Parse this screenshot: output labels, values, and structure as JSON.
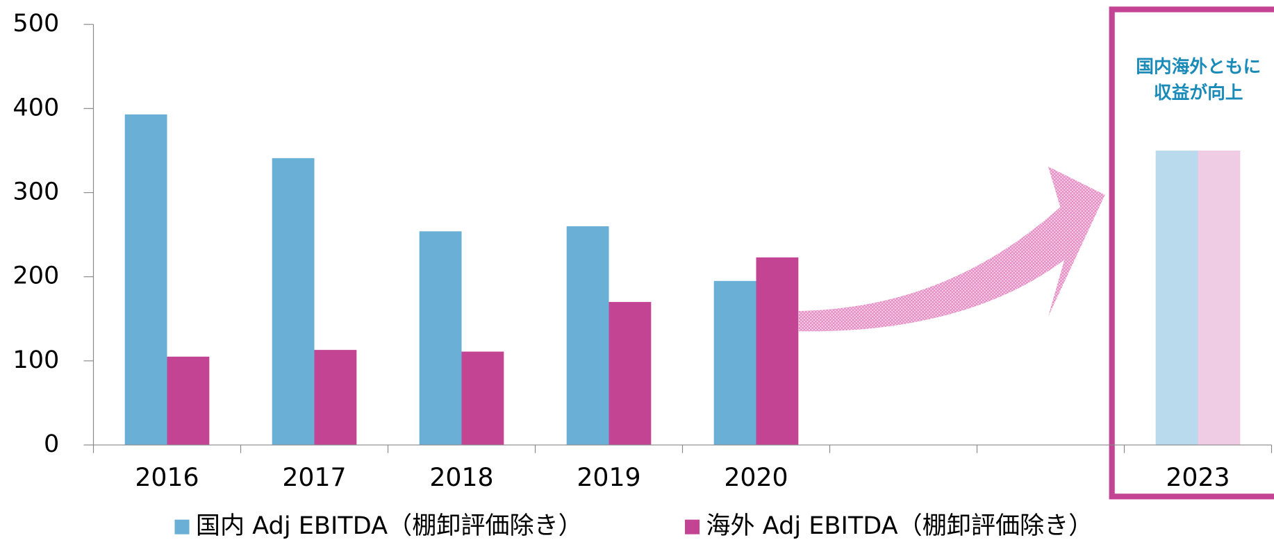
{
  "chart_data": {
    "type": "bar",
    "categories": [
      "2016",
      "2017",
      "2018",
      "2019",
      "2020",
      null,
      null,
      "2023"
    ],
    "series": [
      {
        "name": "国内 Adj EBITDA（棚卸評価除き）",
        "color": "#6aafd6",
        "colors": [
          "#6aafd6",
          "#6aafd6",
          "#6aafd6",
          "#6aafd6",
          "#6aafd6",
          null,
          null,
          "#b9d9ec"
        ],
        "values": [
          393,
          341,
          254,
          260,
          195,
          null,
          null,
          350
        ]
      },
      {
        "name": "海外 Adj EBITDA（棚卸評価除き）",
        "color": "#c44494",
        "colors": [
          "#c44494",
          "#c44494",
          "#c44494",
          "#c44494",
          "#c44494",
          null,
          null,
          "#f0cce4"
        ],
        "values": [
          105,
          113,
          111,
          170,
          223,
          null,
          null,
          350
        ]
      }
    ],
    "annotation": [
      "国内海外ともに",
      "収益が向上"
    ],
    "ylim": [
      0,
      500
    ],
    "yticks": [
      0,
      100,
      200,
      300,
      400,
      500
    ],
    "grid": false,
    "legend": "bottom"
  }
}
